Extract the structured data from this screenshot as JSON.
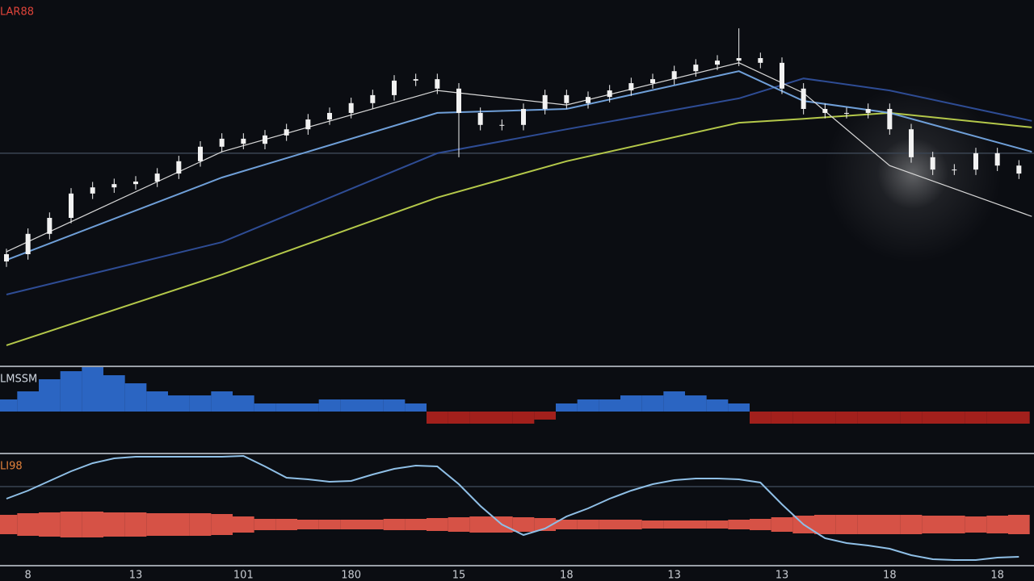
{
  "chart_data": [
    {
      "type": "candlestick",
      "title": "LAR88",
      "title_color": "#e0443a",
      "xlim": [
        -0.3,
        47.7
      ],
      "ylim": [
        0,
        100
      ],
      "reference_line": 57.8,
      "candle_color": "#f2f2f2",
      "candles": {
        "open": [
          28,
          30,
          35.6,
          40,
          46.7,
          48.4,
          49.3,
          50,
          52.2,
          55.6,
          59.6,
          61.8,
          60.4,
          62.7,
          64.4,
          67.1,
          68.9,
          71.6,
          73.8,
          77.8,
          78.2,
          75.6,
          68.9,
          65.6,
          65.6,
          70,
          73.8,
          71.6,
          73.3,
          75.1,
          77.1,
          78.2,
          80.4,
          82.2,
          83.3,
          84,
          82.7,
          75.6,
          70,
          68.9,
          68.9,
          70,
          64.4,
          56.7,
          53.3,
          53.3,
          57.8,
          54.4
        ],
        "high": [
          31.5,
          37.1,
          41.5,
          48.2,
          49.9,
          50.8,
          51.5,
          53.7,
          57.1,
          61.1,
          63.3,
          63.3,
          64.2,
          65.9,
          68.6,
          70.4,
          73.1,
          75.3,
          79.3,
          79.7,
          79.7,
          77.1,
          70.4,
          67.1,
          71.5,
          75.3,
          75.3,
          74.8,
          76.6,
          78.6,
          79.7,
          81.9,
          83.7,
          84.8,
          92.2,
          85.5,
          84.2,
          77.1,
          71.5,
          70.4,
          71.5,
          71.5,
          65.9,
          58.2,
          54.8,
          59.3,
          59.3,
          55.9
        ],
        "low": [
          26.5,
          28.5,
          34.1,
          38.5,
          45.2,
          46.9,
          47.8,
          48.5,
          50.7,
          54.1,
          58.1,
          58.9,
          58.9,
          61.2,
          62.9,
          65.6,
          67.4,
          70.1,
          72.3,
          76.3,
          74.1,
          56.7,
          64.1,
          64.1,
          64.1,
          68.5,
          70.1,
          70.1,
          71.8,
          73.6,
          75.6,
          76.7,
          78.9,
          80.7,
          81.8,
          81.2,
          74.1,
          68.5,
          67.4,
          67.4,
          67.4,
          62.9,
          55.2,
          51.8,
          51.8,
          51.8,
          52.9,
          50.7
        ],
        "close": [
          30,
          35.6,
          40,
          46.7,
          48.4,
          49.3,
          50,
          52.2,
          55.6,
          59.6,
          61.8,
          60.4,
          62.7,
          64.4,
          67.1,
          68.9,
          71.6,
          73.8,
          77.8,
          78.2,
          75.6,
          68.9,
          65.6,
          65.6,
          70,
          73.8,
          71.6,
          73.3,
          75.1,
          77.1,
          78.2,
          80.4,
          82.2,
          83.3,
          84,
          82.7,
          75.6,
          70,
          68.9,
          68.9,
          70,
          64.4,
          56.7,
          53.3,
          53.3,
          57.8,
          54.4,
          52.2
        ]
      },
      "lines": [
        {
          "color": "#d8d8d8",
          "x": [
            0,
            10,
            20,
            26,
            34,
            37,
            41,
            47.6
          ],
          "values": [
            30.7,
            58.2,
            75.1,
            71.1,
            82.7,
            74.4,
            54.4,
            40.4
          ]
        },
        {
          "color": "#6f9fd8",
          "x": [
            0,
            10,
            20,
            26,
            34,
            37,
            41,
            47.6
          ],
          "values": [
            28.4,
            51.1,
            68.9,
            70,
            80.4,
            72.2,
            68.9,
            58.2
          ]
        },
        {
          "color": "#2e4c94",
          "x": [
            0,
            10,
            20,
            26,
            34,
            37,
            41,
            47.6
          ],
          "values": [
            18.9,
            33.3,
            57.8,
            64.4,
            72.9,
            78.4,
            75.1,
            66.7
          ]
        },
        {
          "color": "#b4c84a",
          "x": [
            0,
            10,
            20,
            26,
            34,
            37,
            41,
            47.6
          ],
          "values": [
            4.9,
            24.4,
            45.6,
            55.6,
            66.2,
            67.3,
            68.9,
            64.9
          ]
        }
      ]
    },
    {
      "type": "bar",
      "title": "LMSSM",
      "title_color": "#cfd6e0",
      "xlim": [
        -0.3,
        47.7
      ],
      "ylim": [
        -10,
        10
      ],
      "color": "#2f6fd6",
      "negative_color": "#b3221e",
      "values": [
        3,
        5,
        8,
        10,
        11,
        9,
        7,
        5,
        4,
        4,
        5,
        4,
        2,
        2,
        2,
        3,
        3,
        3,
        3,
        2,
        -3,
        -3,
        -3,
        -3,
        -3,
        -2,
        2,
        3,
        3,
        4,
        4,
        5,
        4,
        3,
        2,
        -3,
        -3,
        -3,
        -3,
        -3,
        -3,
        -3,
        -3,
        -3,
        -3,
        -3,
        -3,
        -3
      ]
    },
    {
      "type": "line",
      "title": "LI98",
      "title_color": "#e0803a",
      "xlim": [
        -0.3,
        47.7
      ],
      "ylim": [
        0,
        140
      ],
      "y2lim": [
        -50,
        90
      ],
      "reference_line": 97,
      "xticks": [
        {
          "value": 1,
          "label": "8"
        },
        {
          "value": 6,
          "label": "13"
        },
        {
          "value": 11,
          "label": "101"
        },
        {
          "value": 16,
          "label": "180"
        },
        {
          "value": 21,
          "label": "15"
        },
        {
          "value": 26,
          "label": "18"
        },
        {
          "value": 31,
          "label": "13"
        },
        {
          "value": 36,
          "label": "13"
        },
        {
          "value": 41,
          "label": "18"
        },
        {
          "value": 46,
          "label": "18"
        }
      ],
      "series": [
        {
          "color": "#ec5a4c",
          "axis": "y2",
          "values": [
            12,
            14,
            15,
            16,
            16,
            15,
            15,
            14,
            14,
            14,
            13,
            10,
            7,
            7,
            6,
            6,
            6,
            6,
            7,
            7,
            8,
            9,
            10,
            10,
            9,
            8,
            6,
            6,
            6,
            6,
            5,
            5,
            5,
            5,
            6,
            7,
            9,
            11,
            12,
            12,
            12,
            12,
            12,
            11,
            11,
            10,
            11,
            12
          ]
        },
        {
          "color": "#8fbfe6",
          "values": [
            82,
            92,
            104,
            116,
            126,
            132,
            134,
            134,
            134,
            134,
            134,
            135,
            122,
            108,
            106,
            103,
            104,
            112,
            119,
            123,
            122,
            100,
            73,
            50,
            37,
            45,
            60,
            70,
            82,
            92,
            100,
            105,
            107,
            107,
            106,
            102,
            75,
            50,
            33,
            27,
            24,
            20,
            12,
            7,
            6,
            6,
            9,
            10
          ]
        }
      ]
    }
  ]
}
